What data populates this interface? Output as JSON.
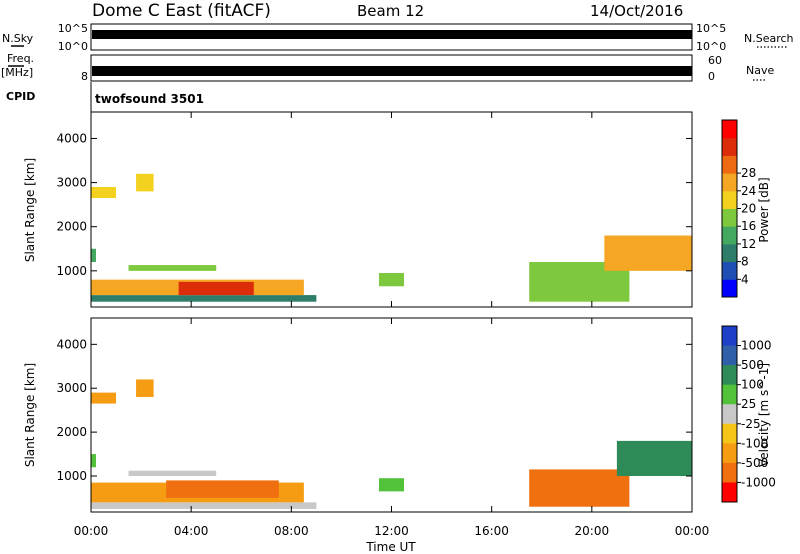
{
  "header": {
    "radar": "Dome C East (fitACF)",
    "beam": "Beam 12",
    "date": "14/Oct/2016"
  },
  "panels": {
    "nsky_label": "N.Sky",
    "nsky_ticks": [
      "10^5",
      "10^0"
    ],
    "nsearch_label": "N.Search",
    "nsearch_ticks": [
      "10^5",
      "10^0"
    ],
    "freq_label_1": "Freq.",
    "freq_label_2": "[MHz]",
    "freq_ticks": [
      "8"
    ],
    "cpid_label": "CPID",
    "nave_label": "Nave",
    "nave_ticks": [
      "60",
      "0"
    ],
    "cpid_value": "twofsound 3501"
  },
  "chart_data": [
    {
      "type": "heatmap",
      "name": "power",
      "ylabel": "Slant Range [km]",
      "yticks": [
        1000,
        2000,
        3000,
        4000
      ],
      "ylim": [
        180,
        4600
      ],
      "xlabel": "Time UT",
      "xticks": [
        "00:00",
        "04:00",
        "08:00",
        "12:00",
        "16:00",
        "20:00",
        "00:00"
      ],
      "xlim_hours": [
        0,
        24
      ],
      "colorbar": {
        "label": "Power [dB]",
        "ticks": [
          "4",
          "8",
          "12",
          "16",
          "20",
          "24",
          "28"
        ],
        "colors": [
          "#0000ff",
          "#1f4fb5",
          "#2e7d6a",
          "#45a860",
          "#7dc83c",
          "#f2d21e",
          "#f5a623",
          "#ee6a12",
          "#dd2c0a",
          "#ff0000"
        ]
      },
      "regions": [
        {
          "t0": 0.0,
          "t1": 9.0,
          "r0": 300,
          "r1": 450,
          "level": 2
        },
        {
          "t0": 0.0,
          "t1": 8.5,
          "r0": 450,
          "r1": 800,
          "level": 6
        },
        {
          "t0": 3.5,
          "t1": 6.5,
          "r0": 450,
          "r1": 750,
          "level": 8
        },
        {
          "t0": 1.5,
          "t1": 5.0,
          "r0": 1000,
          "r1": 1130,
          "level": 4
        },
        {
          "t0": 0.0,
          "t1": 0.2,
          "r0": 1200,
          "r1": 1500,
          "level": 3
        },
        {
          "t0": 0.0,
          "t1": 1.0,
          "r0": 2650,
          "r1": 2900,
          "level": 5
        },
        {
          "t0": 1.8,
          "t1": 2.5,
          "r0": 2800,
          "r1": 3200,
          "level": 5
        },
        {
          "t0": 11.5,
          "t1": 12.5,
          "r0": 650,
          "r1": 950,
          "level": 4
        },
        {
          "t0": 17.5,
          "t1": 21.5,
          "r0": 300,
          "r1": 1200,
          "level": 4
        },
        {
          "t0": 20.5,
          "t1": 24.0,
          "r0": 1000,
          "r1": 1800,
          "level": 6
        }
      ]
    },
    {
      "type": "heatmap",
      "name": "velocity",
      "ylabel": "Slant Range [km]",
      "yticks": [
        1000,
        2000,
        3000,
        4000
      ],
      "ylim": [
        180,
        4600
      ],
      "xlabel": "Time UT",
      "xticks": [
        "00:00",
        "04:00",
        "08:00",
        "12:00",
        "16:00",
        "20:00",
        "00:00"
      ],
      "xlim_hours": [
        0,
        24
      ],
      "colorbar": {
        "label": "Velocity [m s^-1]",
        "ticks": [
          "1000",
          "500",
          "100",
          "25",
          "-25",
          "-100",
          "-500",
          "-1000"
        ],
        "colors": [
          "#1f3fc8",
          "#2e5fa8",
          "#2e8b57",
          "#52c23a",
          "#c8c8c8",
          "#f5c518",
          "#f59c12",
          "#f07010",
          "#ff0000"
        ]
      },
      "regions": [
        {
          "t0": 0.0,
          "t1": 9.0,
          "r0": 250,
          "r1": 400,
          "level": 4
        },
        {
          "t0": 0.0,
          "t1": 8.5,
          "r0": 400,
          "r1": 850,
          "level": 6
        },
        {
          "t0": 3.0,
          "t1": 7.5,
          "r0": 500,
          "r1": 900,
          "level": 7
        },
        {
          "t0": 1.5,
          "t1": 5.0,
          "r0": 1000,
          "r1": 1120,
          "level": 4
        },
        {
          "t0": 0.0,
          "t1": 0.2,
          "r0": 1200,
          "r1": 1500,
          "level": 3
        },
        {
          "t0": 0.0,
          "t1": 1.0,
          "r0": 2650,
          "r1": 2900,
          "level": 6
        },
        {
          "t0": 1.8,
          "t1": 2.5,
          "r0": 2800,
          "r1": 3200,
          "level": 6
        },
        {
          "t0": 11.5,
          "t1": 12.5,
          "r0": 650,
          "r1": 950,
          "level": 3
        },
        {
          "t0": 17.5,
          "t1": 21.5,
          "r0": 300,
          "r1": 1150,
          "level": 7
        },
        {
          "t0": 21.0,
          "t1": 24.0,
          "r0": 1000,
          "r1": 1800,
          "level": 2
        }
      ]
    }
  ]
}
